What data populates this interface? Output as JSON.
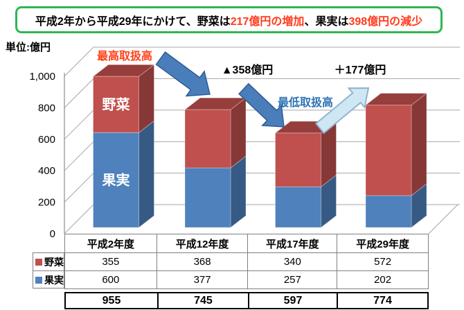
{
  "banner": {
    "text_prefix": "平成2年から平成29年にかけて、野菜は",
    "highlight_increase": "217億円の増加",
    "text_middle": " 、果実は",
    "highlight_decrease": "398億円の減少",
    "highlight_color": "#FF3B1E",
    "border_color": "#2EB653"
  },
  "unit_label": "単位:億円",
  "chart_data": {
    "type": "bar",
    "variant": "3d-stacked-column",
    "title": "",
    "unit": "億円",
    "categories": [
      "平成2年度",
      "平成12年度",
      "平成17年度",
      "平成29年度"
    ],
    "series": [
      {
        "name": "野菜",
        "color": "#C0504D",
        "values": [
          355,
          368,
          340,
          572
        ]
      },
      {
        "name": "果実",
        "color": "#4F81BD",
        "values": [
          600,
          377,
          257,
          202
        ]
      }
    ],
    "totals": [
      955,
      745,
      597,
      774
    ],
    "ylim": [
      0,
      1000
    ],
    "ytick_values": [
      0,
      200,
      400,
      600,
      800,
      1000
    ],
    "ytick_labels": [
      "0",
      "200",
      "400",
      "600",
      "800",
      "1,000"
    ],
    "grid": true,
    "legend_position": "bottom-left",
    "annotations": {
      "max_label": {
        "text": "最高取扱高",
        "color": "#FF4019"
      },
      "min_label": {
        "text": "最低取扱高",
        "color": "#2E74B5"
      },
      "delta_1": "▲358億円",
      "delta_2": "＋177億円",
      "first_bar_series_labels": {
        "vegetable": "野菜",
        "fruit": "果実"
      },
      "arrow_color": "#4A7EBB",
      "light_arrow_color": "#CFE7F3"
    }
  }
}
